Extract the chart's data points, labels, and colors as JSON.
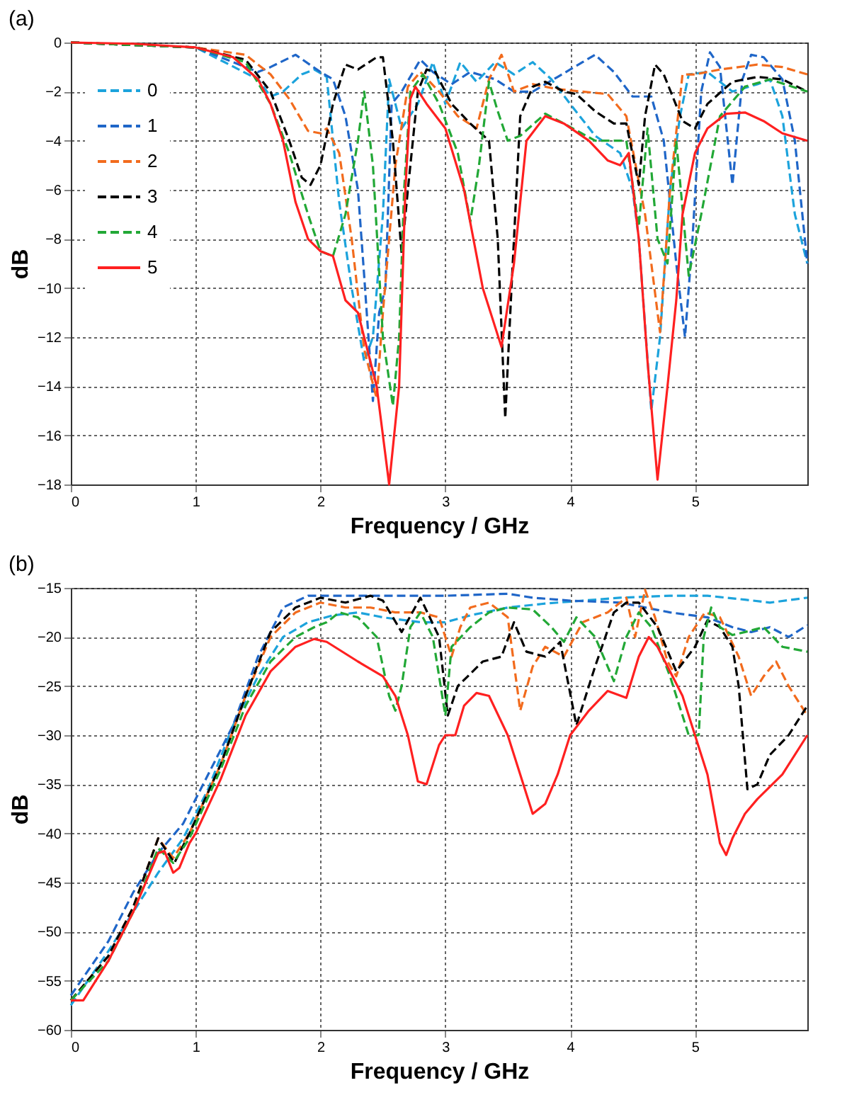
{
  "chart_data": [
    {
      "type": "line",
      "title": "(a)",
      "xlabel": "Frequency / GHz",
      "ylabel": "dB",
      "xlim": [
        0,
        5.9
      ],
      "xticks": [
        0,
        1,
        2,
        3,
        4,
        5
      ],
      "ylim": [
        -18,
        0
      ],
      "yticks": [
        -18,
        -16,
        -14,
        -12,
        -10,
        -8,
        -6,
        -4,
        -2,
        0
      ],
      "grid": true,
      "legend": "top left",
      "line_style": "dashed",
      "series": [
        {
          "name": "0",
          "color": "#1ca3dc",
          "x": [
            0,
            1,
            1.5,
            1.6,
            1.7,
            1.85,
            1.95,
            2.05,
            2.15,
            2.25,
            2.35,
            2.42,
            2.5,
            2.55,
            2.65,
            2.78,
            2.9,
            3.0,
            3.12,
            3.25,
            3.4,
            3.55,
            3.7,
            3.85,
            4.0,
            4.2,
            4.4,
            4.5,
            4.55,
            4.65,
            4.72,
            4.8,
            4.88,
            4.95,
            5.1,
            5.3,
            5.5,
            5.6,
            5.7,
            5.8,
            5.9
          ],
          "values": [
            0,
            -0.2,
            -1.5,
            -2.2,
            -2,
            -1.3,
            -1.1,
            -1.4,
            -6.5,
            -10,
            -13,
            -12,
            -7,
            -1.5,
            -3.5,
            -2.5,
            -0.8,
            -2.5,
            -0.8,
            -1.6,
            -0.8,
            -1.3,
            -0.8,
            -1.5,
            -2.5,
            -3.8,
            -4.5,
            -6,
            -8,
            -15,
            -12,
            -6,
            -3,
            -1.3,
            -1.2,
            -2,
            -1.7,
            -1.5,
            -3,
            -7,
            -9
          ]
        },
        {
          "name": "1",
          "color": "#1f66c8",
          "x": [
            0,
            1,
            1.5,
            1.6,
            1.8,
            2.0,
            2.1,
            2.2,
            2.3,
            2.35,
            2.42,
            2.47,
            2.52,
            2.57,
            2.65,
            2.8,
            2.9,
            3.05,
            3.2,
            3.4,
            3.55,
            3.7,
            3.9,
            4.1,
            4.2,
            4.35,
            4.5,
            4.65,
            4.75,
            4.85,
            4.92,
            4.98,
            5.05,
            5.12,
            5.2,
            5.3,
            5.38,
            5.45,
            5.55,
            5.7,
            5.8,
            5.9
          ],
          "values": [
            0,
            -0.2,
            -1.2,
            -1,
            -0.5,
            -1.2,
            -1.5,
            -3,
            -6,
            -9.5,
            -14.6,
            -11,
            -10,
            -2.5,
            -2,
            -0.7,
            -1.2,
            -1.7,
            -1.2,
            -1.5,
            -2,
            -2,
            -1.4,
            -0.8,
            -0.5,
            -1.2,
            -2.2,
            -2.2,
            -4,
            -9,
            -12,
            -8,
            -2,
            -0.4,
            -1,
            -5.8,
            -1.5,
            -0.5,
            -0.6,
            -1.5,
            -4,
            -9
          ]
        },
        {
          "name": "2",
          "color": "#f26b1d",
          "x": [
            0,
            1,
            1.4,
            1.6,
            1.75,
            1.9,
            2.0,
            2.05,
            2.15,
            2.25,
            2.35,
            2.45,
            2.5,
            2.6,
            2.7,
            2.8,
            2.95,
            3.1,
            3.25,
            3.35,
            3.45,
            3.55,
            3.7,
            3.9,
            4.1,
            4.3,
            4.45,
            4.6,
            4.72,
            4.8,
            4.9,
            5.0,
            5.2,
            5.5,
            5.7,
            5.9
          ],
          "values": [
            0,
            -0.2,
            -0.5,
            -1.3,
            -2.3,
            -3.6,
            -3.7,
            -3.5,
            -4.5,
            -8,
            -12.5,
            -14.5,
            -11,
            -5,
            -1.8,
            -1.2,
            -2,
            -3,
            -3.5,
            -1.5,
            -0.5,
            -2,
            -1.7,
            -1.9,
            -2,
            -2.1,
            -3,
            -7,
            -11.8,
            -6,
            -1.3,
            -1.3,
            -1.1,
            -0.9,
            -1,
            -1.3
          ]
        },
        {
          "name": "3",
          "color": "#000000",
          "x": [
            0,
            1,
            1.4,
            1.6,
            1.75,
            1.85,
            1.92,
            2.0,
            2.1,
            2.2,
            2.3,
            2.45,
            2.5,
            2.58,
            2.65,
            2.7,
            2.78,
            2.85,
            2.92,
            3.05,
            3.2,
            3.35,
            3.42,
            3.48,
            3.53,
            3.6,
            3.7,
            3.8,
            3.95,
            4.05,
            4.2,
            4.35,
            4.45,
            4.55,
            4.6,
            4.68,
            4.75,
            4.9,
            5.0,
            5.1,
            5.3,
            5.5,
            5.7,
            5.9
          ],
          "values": [
            0,
            -0.2,
            -0.7,
            -2,
            -4,
            -5.5,
            -5.8,
            -5,
            -2.5,
            -0.9,
            -1.1,
            -0.6,
            -0.6,
            -4,
            -8.6,
            -6,
            -2,
            -1.1,
            -1.2,
            -2.5,
            -3.3,
            -4,
            -8,
            -15.3,
            -10,
            -3,
            -1.8,
            -1.6,
            -2,
            -2.1,
            -2.8,
            -3.3,
            -3.3,
            -5.8,
            -3,
            -0.9,
            -1.3,
            -3.2,
            -3.5,
            -2.5,
            -1.6,
            -1.4,
            -1.5,
            -2
          ]
        },
        {
          "name": "4",
          "color": "#22a836",
          "x": [
            0,
            1,
            1.4,
            1.6,
            1.75,
            1.9,
            2.0,
            2.1,
            2.2,
            2.3,
            2.35,
            2.42,
            2.5,
            2.58,
            2.63,
            2.67,
            2.72,
            2.82,
            2.95,
            3.1,
            3.2,
            3.27,
            3.35,
            3.42,
            3.5,
            3.6,
            3.8,
            3.95,
            4.2,
            4.45,
            4.55,
            4.62,
            4.7,
            4.78,
            4.85,
            4.95,
            5.05,
            5.2,
            5.4,
            5.6,
            5.9
          ],
          "values": [
            0,
            -0.2,
            -0.8,
            -2.5,
            -4.5,
            -7,
            -8.5,
            -8.7,
            -7,
            -4,
            -2,
            -5,
            -12,
            -14.8,
            -12,
            -6,
            -2,
            -1.3,
            -2.5,
            -4.5,
            -7.3,
            -5,
            -1.6,
            -2.8,
            -4,
            -3.8,
            -2.9,
            -3.3,
            -4,
            -4,
            -7.5,
            -3.5,
            -8,
            -9,
            -4,
            -9.5,
            -7,
            -3,
            -1.8,
            -1.5,
            -2
          ]
        },
        {
          "name": "5",
          "color": "#ff2020",
          "line_style": "solid",
          "x": [
            0,
            0.5,
            1,
            1.3,
            1.5,
            1.6,
            1.7,
            1.8,
            1.9,
            2.0,
            2.1,
            2.2,
            2.3,
            2.45,
            2.55,
            2.63,
            2.68,
            2.72,
            2.76,
            2.85,
            3.0,
            3.15,
            3.3,
            3.45,
            3.55,
            3.65,
            3.8,
            3.95,
            4.15,
            4.3,
            4.4,
            4.47,
            4.55,
            4.62,
            4.7,
            4.78,
            4.85,
            4.9,
            5.0,
            5.1,
            5.25,
            5.4,
            5.55,
            5.7,
            5.9
          ],
          "values": [
            0,
            -0.05,
            -0.2,
            -0.6,
            -1.5,
            -2.5,
            -4,
            -6.5,
            -8,
            -8.5,
            -8.7,
            -10.5,
            -11,
            -14,
            -18,
            -14,
            -6,
            -2.3,
            -1.8,
            -2.5,
            -3.5,
            -6,
            -10,
            -12.4,
            -9,
            -4,
            -3,
            -3.3,
            -4,
            -4.8,
            -5,
            -4.5,
            -8,
            -13,
            -17.8,
            -14,
            -10.5,
            -7,
            -4.5,
            -3.5,
            -2.9,
            -2.85,
            -3.2,
            -3.7,
            -4
          ]
        }
      ]
    },
    {
      "type": "line",
      "title": "(b)",
      "xlabel": "Frequency / GHz",
      "ylabel": "dB",
      "xlim": [
        0,
        5.9
      ],
      "xticks": [
        0,
        1,
        2,
        3,
        4,
        5
      ],
      "ylim": [
        -60,
        -15
      ],
      "yticks": [
        -60,
        -55,
        -50,
        -45,
        -40,
        -35,
        -30,
        -25,
        -20,
        -15
      ],
      "grid": true,
      "legend": "top left",
      "line_style": "dashed",
      "series": [
        {
          "name": "0",
          "color": "#1ca3dc",
          "x": [
            0,
            0.3,
            0.5,
            0.7,
            0.9,
            1.1,
            1.3,
            1.5,
            1.7,
            1.9,
            2.1,
            2.3,
            2.5,
            2.8,
            3.0,
            3.2,
            3.5,
            3.8,
            4.1,
            4.4,
            4.8,
            5.1,
            5.4,
            5.6,
            5.9
          ],
          "values": [
            -57.5,
            -52,
            -48,
            -44,
            -40.5,
            -35.5,
            -29,
            -24,
            -20,
            -18.5,
            -17.8,
            -17.5,
            -18,
            -18.5,
            -18.5,
            -17.8,
            -17,
            -16.6,
            -16.3,
            -16,
            -15.8,
            -15.8,
            -16.2,
            -16.5,
            -16
          ]
        },
        {
          "name": "1",
          "color": "#1f66c8",
          "x": [
            0,
            0.3,
            0.5,
            0.7,
            0.9,
            1.1,
            1.3,
            1.5,
            1.7,
            1.9,
            2.2,
            2.6,
            3.0,
            3.5,
            3.7,
            4.0,
            4.4,
            4.8,
            5.1,
            5.3,
            5.45,
            5.6,
            5.75,
            5.9
          ],
          "values": [
            -56.5,
            -51,
            -46,
            -42,
            -39,
            -34,
            -29,
            -22,
            -17,
            -15.8,
            -15.8,
            -15.8,
            -15.8,
            -15.6,
            -16,
            -16.3,
            -16.5,
            -17.5,
            -18,
            -19,
            -19.5,
            -19,
            -20,
            -18.8
          ]
        },
        {
          "name": "2",
          "color": "#f26b1d",
          "x": [
            0,
            0.3,
            0.5,
            0.7,
            0.82,
            0.95,
            1.2,
            1.4,
            1.6,
            1.8,
            2.0,
            2.2,
            2.4,
            2.6,
            2.8,
            2.95,
            3.05,
            3.12,
            3.2,
            3.35,
            3.5,
            3.6,
            3.7,
            3.8,
            3.95,
            4.1,
            4.3,
            4.45,
            4.52,
            4.6,
            4.68,
            4.78,
            4.85,
            4.95,
            5.08,
            5.2,
            5.35,
            5.45,
            5.55,
            5.65,
            5.75,
            5.9
          ],
          "values": [
            -57,
            -52.5,
            -47.5,
            -40.5,
            -42.5,
            -40,
            -33,
            -26,
            -20,
            -17.5,
            -16.5,
            -17,
            -17,
            -17.5,
            -17.5,
            -18,
            -22,
            -19,
            -17,
            -16.5,
            -18,
            -27.5,
            -23,
            -21,
            -22,
            -18.5,
            -17.5,
            -16,
            -20,
            -15.2,
            -18,
            -22.5,
            -24,
            -20,
            -17.5,
            -18,
            -22,
            -26,
            -24,
            -22.5,
            -25,
            -28
          ]
        },
        {
          "name": "3",
          "color": "#000000",
          "x": [
            0,
            0.3,
            0.5,
            0.7,
            0.83,
            0.95,
            1.2,
            1.4,
            1.6,
            1.8,
            2.0,
            2.2,
            2.4,
            2.5,
            2.65,
            2.8,
            2.95,
            3.02,
            3.1,
            3.3,
            3.45,
            3.55,
            3.65,
            3.8,
            3.92,
            4.05,
            4.2,
            4.35,
            4.45,
            4.55,
            4.7,
            4.85,
            5.0,
            5.1,
            5.2,
            5.3,
            5.35,
            5.42,
            5.5,
            5.6,
            5.75,
            5.9
          ],
          "values": [
            -57,
            -52.5,
            -47.5,
            -40.5,
            -43,
            -40,
            -33,
            -26,
            -19.5,
            -17,
            -16,
            -16.5,
            -15.8,
            -16.3,
            -19.5,
            -16,
            -20,
            -28,
            -25,
            -22.5,
            -22,
            -18.5,
            -21.5,
            -22,
            -20.5,
            -29,
            -23,
            -17.5,
            -16.5,
            -16.5,
            -19,
            -23.5,
            -21,
            -18.3,
            -19,
            -21,
            -25,
            -35.5,
            -35,
            -32,
            -30,
            -27
          ]
        },
        {
          "name": "4",
          "color": "#22a836",
          "x": [
            0,
            0.3,
            0.5,
            0.7,
            0.82,
            0.95,
            1.2,
            1.4,
            1.6,
            1.8,
            1.95,
            2.05,
            2.15,
            2.3,
            2.45,
            2.55,
            2.6,
            2.65,
            2.72,
            2.8,
            2.9,
            3.0,
            3.05,
            3.2,
            3.35,
            3.5,
            3.7,
            3.85,
            3.95,
            4.05,
            4.2,
            4.35,
            4.45,
            4.55,
            4.65,
            4.8,
            4.95,
            5.03,
            5.07,
            5.13,
            5.2,
            5.3,
            5.4,
            5.55,
            5.7,
            5.9
          ],
          "values": [
            -57,
            -53,
            -48,
            -41.5,
            -43,
            -40.5,
            -33.5,
            -27,
            -22.5,
            -20,
            -19,
            -18.5,
            -17.5,
            -18,
            -20,
            -26,
            -27.5,
            -25,
            -19,
            -17.5,
            -20,
            -28,
            -21,
            -19,
            -17.5,
            -17,
            -17.2,
            -19,
            -20.5,
            -18,
            -20,
            -24.5,
            -20,
            -17.5,
            -19,
            -24,
            -30,
            -30,
            -20,
            -17,
            -19,
            -19.8,
            -19.5,
            -19,
            -21,
            -21.5
          ]
        },
        {
          "name": "5",
          "color": "#ff2020",
          "line_style": "solid",
          "x": [
            0,
            0.1,
            0.3,
            0.5,
            0.6,
            0.7,
            0.75,
            0.82,
            0.87,
            0.95,
            1.0,
            1.2,
            1.4,
            1.6,
            1.8,
            1.95,
            2.05,
            2.3,
            2.5,
            2.6,
            2.7,
            2.78,
            2.85,
            2.95,
            3.0,
            3.08,
            3.15,
            3.25,
            3.35,
            3.5,
            3.6,
            3.7,
            3.8,
            3.9,
            4.0,
            4.15,
            4.3,
            4.45,
            4.55,
            4.63,
            4.7,
            4.9,
            5.0,
            5.1,
            5.15,
            5.2,
            5.25,
            5.3,
            5.4,
            5.5,
            5.7,
            5.9
          ],
          "values": [
            -57,
            -57,
            -53,
            -48,
            -45,
            -42,
            -41.8,
            -44,
            -43.5,
            -41,
            -40,
            -34.5,
            -28,
            -23.5,
            -21,
            -20.2,
            -20.5,
            -22.5,
            -24,
            -26,
            -30,
            -34.7,
            -35,
            -31,
            -30,
            -30,
            -27,
            -25.7,
            -26,
            -30,
            -34,
            -38,
            -37,
            -34,
            -30,
            -27.5,
            -25.5,
            -26.2,
            -22,
            -20,
            -21,
            -26,
            -30,
            -34,
            -37.5,
            -41,
            -42.2,
            -40.5,
            -38,
            -36.5,
            -34,
            -30
          ]
        }
      ]
    }
  ]
}
